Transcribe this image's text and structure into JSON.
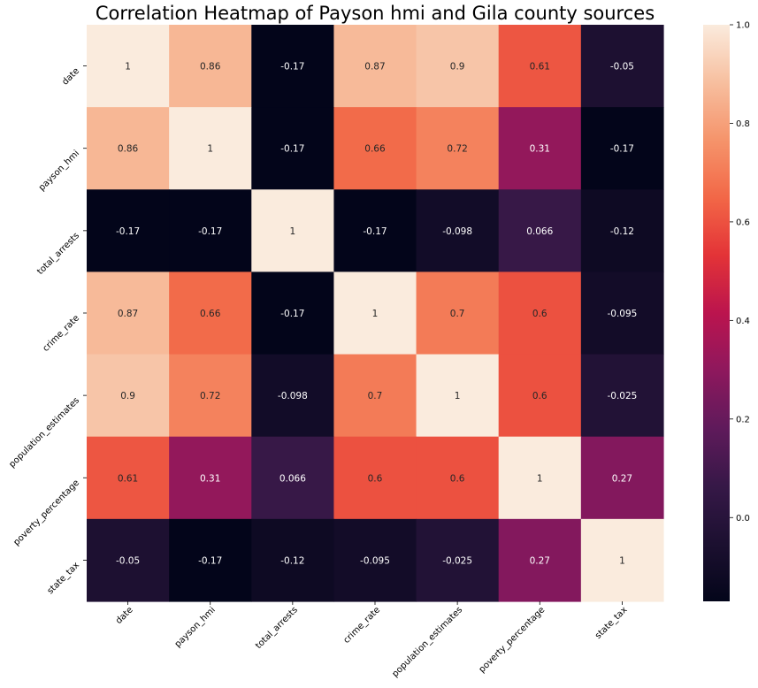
{
  "chart_data": {
    "type": "heatmap",
    "title": "Correlation Heatmap of Payson hmi and Gila county sources",
    "xlabel": "",
    "ylabel": "",
    "row_labels": [
      "date",
      "payson_hmi",
      "total_arrests",
      "crime_rate",
      "population_estimates",
      "poverty_percentage",
      "state_tax"
    ],
    "col_labels": [
      "date",
      "payson_hmi",
      "total_arrests",
      "crime_rate",
      "population_estimates",
      "poverty_percentage",
      "state_tax"
    ],
    "values": [
      [
        1,
        0.86,
        -0.17,
        0.87,
        0.9,
        0.61,
        -0.05
      ],
      [
        0.86,
        1,
        -0.17,
        0.66,
        0.72,
        0.31,
        -0.17
      ],
      [
        -0.17,
        -0.17,
        1,
        -0.17,
        -0.098,
        0.066,
        -0.12
      ],
      [
        0.87,
        0.66,
        -0.17,
        1,
        0.7,
        0.6,
        -0.095
      ],
      [
        0.9,
        0.72,
        -0.098,
        0.7,
        1,
        0.6,
        -0.025
      ],
      [
        0.61,
        0.31,
        0.066,
        0.6,
        0.6,
        1,
        0.27
      ],
      [
        -0.05,
        -0.17,
        -0.12,
        -0.095,
        -0.025,
        0.27,
        1
      ]
    ],
    "value_labels": [
      [
        "1",
        "0.86",
        "-0.17",
        "0.87",
        "0.9",
        "0.61",
        "-0.05"
      ],
      [
        "0.86",
        "1",
        "-0.17",
        "0.66",
        "0.72",
        "0.31",
        "-0.17"
      ],
      [
        "-0.17",
        "-0.17",
        "1",
        "-0.17",
        "-0.098",
        "0.066",
        "-0.12"
      ],
      [
        "0.87",
        "0.66",
        "-0.17",
        "1",
        "0.7",
        "0.6",
        "-0.095"
      ],
      [
        "0.9",
        "0.72",
        "-0.098",
        "0.7",
        "1",
        "0.6",
        "-0.025"
      ],
      [
        "0.61",
        "0.31",
        "0.066",
        "0.6",
        "0.6",
        "1",
        "0.27"
      ],
      [
        "-0.05",
        "-0.17",
        "-0.12",
        "-0.095",
        "-0.025",
        "0.27",
        "1"
      ]
    ],
    "colormap": "rocket",
    "color_range": [
      -0.17,
      1.0
    ],
    "colorbar": {
      "ticks": [
        0.0,
        0.2,
        0.4,
        0.6,
        0.8,
        1.0
      ],
      "tick_labels": [
        "0.0",
        "0.2",
        "0.4",
        "0.6",
        "0.8",
        "1.0"
      ],
      "placement": "right"
    },
    "grid": false
  }
}
